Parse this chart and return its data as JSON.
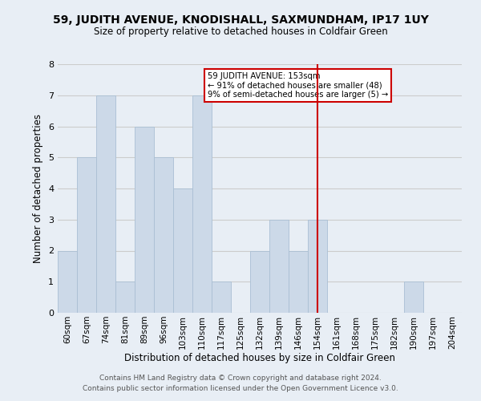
{
  "title": "59, JUDITH AVENUE, KNODISHALL, SAXMUNDHAM, IP17 1UY",
  "subtitle": "Size of property relative to detached houses in Coldfair Green",
  "xlabel": "Distribution of detached houses by size in Coldfair Green",
  "ylabel": "Number of detached properties",
  "footer_line1": "Contains HM Land Registry data © Crown copyright and database right 2024.",
  "footer_line2": "Contains public sector information licensed under the Open Government Licence v3.0.",
  "bin_labels": [
    "60sqm",
    "67sqm",
    "74sqm",
    "81sqm",
    "89sqm",
    "96sqm",
    "103sqm",
    "110sqm",
    "117sqm",
    "125sqm",
    "132sqm",
    "139sqm",
    "146sqm",
    "154sqm",
    "161sqm",
    "168sqm",
    "175sqm",
    "182sqm",
    "190sqm",
    "197sqm",
    "204sqm"
  ],
  "bar_values": [
    2,
    5,
    7,
    1,
    6,
    5,
    4,
    7,
    1,
    0,
    2,
    3,
    2,
    3,
    0,
    0,
    0,
    0,
    1,
    0,
    0
  ],
  "bar_color": "#ccd9e8",
  "bar_edge_color": "#aabfd4",
  "property_line_index": 13,
  "annotation_title": "59 JUDITH AVENUE: 153sqm",
  "annotation_line2": "← 91% of detached houses are smaller (48)",
  "annotation_line3": "9% of semi-detached houses are larger (5) →",
  "annotation_box_color": "#ffffff",
  "annotation_box_edge_color": "#cc0000",
  "property_line_color": "#cc0000",
  "ylim": [
    0,
    8
  ],
  "yticks": [
    0,
    1,
    2,
    3,
    4,
    5,
    6,
    7,
    8
  ],
  "grid_color": "#cccccc",
  "bg_color": "#e8eef5",
  "title_fontsize": 10,
  "subtitle_fontsize": 8.5,
  "ylabel_fontsize": 8.5,
  "xlabel_fontsize": 8.5
}
